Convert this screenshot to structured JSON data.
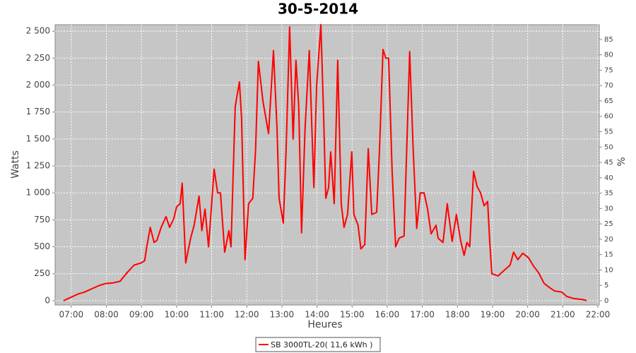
{
  "chart_data": {
    "type": "line",
    "title": "30-5-2014",
    "x_label": "Heures",
    "y_label": "Watts",
    "y2_label": "%",
    "xlim": [
      6.54,
      22.04
    ],
    "xticks": [
      {
        "value": 7,
        "label": "07:00"
      },
      {
        "value": 8,
        "label": "08:00"
      },
      {
        "value": 9,
        "label": "09:00"
      },
      {
        "value": 10,
        "label": "10:00"
      },
      {
        "value": 11,
        "label": "11:00"
      },
      {
        "value": 12,
        "label": "12:00"
      },
      {
        "value": 13,
        "label": "13:00"
      },
      {
        "value": 14,
        "label": "14:00"
      },
      {
        "value": 15,
        "label": "15:00"
      },
      {
        "value": 16,
        "label": "16:00"
      },
      {
        "value": 17,
        "label": "17:00"
      },
      {
        "value": 18,
        "label": "18:00"
      },
      {
        "value": 19,
        "label": "19:00"
      },
      {
        "value": 20,
        "label": "20:00"
      },
      {
        "value": 21,
        "label": "21:00"
      },
      {
        "value": 22,
        "label": "22:00"
      }
    ],
    "ylim": [
      -40,
      2560
    ],
    "yticks": [
      0,
      250,
      500,
      750,
      {
        "value": 1000,
        "label": "1 000"
      },
      {
        "value": 1250,
        "label": "1 250"
      },
      {
        "value": 1500,
        "label": "1 500"
      },
      {
        "value": 1750,
        "label": "1 750"
      },
      {
        "value": 2000,
        "label": "2 000"
      },
      {
        "value": 2250,
        "label": "2 250"
      },
      {
        "value": 2500,
        "label": "2 500"
      }
    ],
    "y2lim": [
      -1.4,
      89.8
    ],
    "y2ticks": [
      0,
      5,
      10,
      15,
      20,
      25,
      30,
      35,
      40,
      45,
      50,
      55,
      60,
      65,
      70,
      75,
      80,
      85
    ],
    "grid": true,
    "legend": "bottom",
    "series": [
      {
        "name": "SB 3000TL-20( 11,6 kWh )",
        "color": "#ff0000",
        "x": [
          6.78,
          6.98,
          7.18,
          7.38,
          7.58,
          7.79,
          7.99,
          8.19,
          8.39,
          8.59,
          8.79,
          8.99,
          9.09,
          9.15,
          9.25,
          9.36,
          9.44,
          9.56,
          9.7,
          9.8,
          9.92,
          10.0,
          10.1,
          10.16,
          10.26,
          10.4,
          10.5,
          10.64,
          10.72,
          10.81,
          10.91,
          11.07,
          11.17,
          11.25,
          11.37,
          11.49,
          11.55,
          11.67,
          11.79,
          11.85,
          11.95,
          12.05,
          12.17,
          12.25,
          12.33,
          12.46,
          12.62,
          12.76,
          12.86,
          12.92,
          13.04,
          13.12,
          13.22,
          13.32,
          13.4,
          13.48,
          13.56,
          13.66,
          13.78,
          13.91,
          13.99,
          14.11,
          14.19,
          14.25,
          14.33,
          14.39,
          14.49,
          14.59,
          14.69,
          14.77,
          14.87,
          14.99,
          15.05,
          15.17,
          15.25,
          15.36,
          15.46,
          15.56,
          15.7,
          15.78,
          15.88,
          15.96,
          16.04,
          16.14,
          16.24,
          16.34,
          16.48,
          16.64,
          16.74,
          16.84,
          16.94,
          17.05,
          17.15,
          17.25,
          17.39,
          17.45,
          17.59,
          17.71,
          17.85,
          17.97,
          18.09,
          18.19,
          18.27,
          18.35,
          18.46,
          18.56,
          18.66,
          18.76,
          18.86,
          18.92,
          18.98,
          19.16,
          19.36,
          19.5,
          19.6,
          19.72,
          19.86,
          20.02,
          20.17,
          20.31,
          20.47,
          20.63,
          20.77,
          20.97,
          21.11,
          21.31,
          21.58,
          21.68
        ],
        "values": [
          0,
          30,
          60,
          80,
          110,
          140,
          160,
          165,
          180,
          260,
          330,
          350,
          370,
          500,
          680,
          540,
          560,
          680,
          780,
          680,
          760,
          870,
          900,
          1090,
          350,
          580,
          700,
          970,
          650,
          850,
          500,
          1220,
          1000,
          1000,
          450,
          650,
          500,
          1800,
          2030,
          1700,
          380,
          900,
          950,
          1400,
          2220,
          1850,
          1550,
          2320,
          1600,
          950,
          720,
          1400,
          2540,
          1500,
          2230,
          1800,
          630,
          1600,
          2320,
          1050,
          2000,
          2560,
          1700,
          950,
          1050,
          1380,
          900,
          2230,
          900,
          680,
          800,
          1380,
          800,
          700,
          480,
          520,
          1410,
          800,
          820,
          1400,
          2330,
          2250,
          2250,
          1200,
          500,
          580,
          600,
          2310,
          1400,
          670,
          1000,
          1000,
          850,
          620,
          700,
          580,
          540,
          900,
          550,
          800,
          560,
          420,
          540,
          500,
          1200,
          1060,
          1000,
          880,
          920,
          550,
          250,
          230,
          290,
          330,
          450,
          380,
          440,
          400,
          320,
          260,
          160,
          120,
          90,
          80,
          40,
          20,
          10,
          0
        ]
      }
    ]
  }
}
